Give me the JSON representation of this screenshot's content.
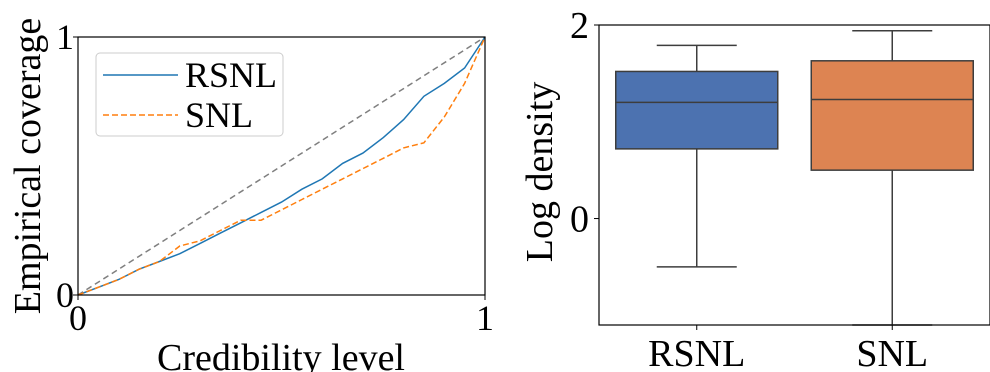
{
  "chart_data": [
    {
      "type": "line",
      "title": "",
      "xlabel": "Credibility level",
      "ylabel": "Empirical coverage",
      "xlim": [
        0,
        1
      ],
      "ylim": [
        0,
        1
      ],
      "xticks": [
        "0",
        "1"
      ],
      "yticks": [
        "0",
        "1"
      ],
      "grid": false,
      "legend_position": "top-left",
      "reference_line": {
        "x": [
          0,
          1
        ],
        "y": [
          0,
          1
        ],
        "color": "#7f7f7f",
        "style": "dashed"
      },
      "series": [
        {
          "name": "RSNL",
          "color": "#1f77b4",
          "style": "solid",
          "x": [
            0,
            0.05,
            0.1,
            0.15,
            0.2,
            0.25,
            0.3,
            0.35,
            0.4,
            0.45,
            0.5,
            0.55,
            0.6,
            0.65,
            0.7,
            0.75,
            0.8,
            0.85,
            0.9,
            0.95,
            1.0
          ],
          "y": [
            0,
            0.03,
            0.06,
            0.1,
            0.13,
            0.16,
            0.2,
            0.24,
            0.28,
            0.32,
            0.36,
            0.41,
            0.45,
            0.51,
            0.55,
            0.61,
            0.68,
            0.77,
            0.82,
            0.88,
            1.0
          ]
        },
        {
          "name": "SNL",
          "color": "#ff7f0e",
          "style": "dashed",
          "x": [
            0,
            0.05,
            0.1,
            0.15,
            0.2,
            0.25,
            0.3,
            0.35,
            0.4,
            0.45,
            0.5,
            0.55,
            0.6,
            0.65,
            0.7,
            0.75,
            0.8,
            0.85,
            0.9,
            0.95,
            1.0
          ],
          "y": [
            0,
            0.03,
            0.06,
            0.1,
            0.13,
            0.19,
            0.21,
            0.25,
            0.29,
            0.29,
            0.33,
            0.37,
            0.41,
            0.45,
            0.49,
            0.53,
            0.57,
            0.59,
            0.69,
            0.82,
            1.0
          ]
        }
      ]
    },
    {
      "type": "box",
      "title": "",
      "xlabel": "",
      "ylabel": "Log density",
      "ylim": [
        -1.1,
        2.0
      ],
      "yticks": [
        "0",
        "2"
      ],
      "categories": [
        "RSNL",
        "SNL"
      ],
      "grid": false,
      "series": [
        {
          "name": "RSNL",
          "color": "#4c72b0",
          "whisker_low": -0.5,
          "q1": 0.72,
          "median": 1.2,
          "q3": 1.52,
          "whisker_high": 1.79
        },
        {
          "name": "SNL",
          "color": "#dd8452",
          "whisker_low": -1.1,
          "q1": 0.5,
          "median": 1.23,
          "q3": 1.63,
          "whisker_high": 1.94
        }
      ]
    }
  ]
}
